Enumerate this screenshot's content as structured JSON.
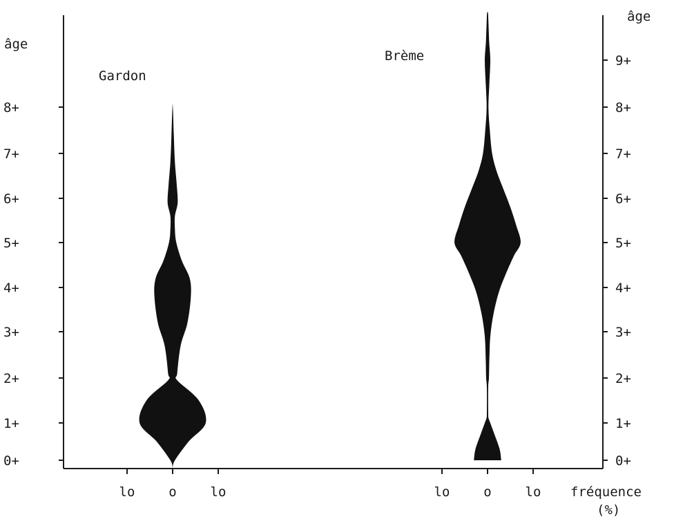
{
  "chart_data": {
    "type": "area",
    "left_axis_label": "âge",
    "right_axis_label": "âge",
    "x_unit_label": "fréquence",
    "x_unit_sub": "(%)",
    "left_age_ticks": [
      "0+",
      "1+",
      "2+",
      "3+",
      "4+",
      "5+",
      "6+",
      "7+",
      "8+"
    ],
    "right_age_ticks": [
      "0+",
      "1+",
      "2+",
      "3+",
      "4+",
      "5+",
      "6+",
      "7+",
      "8+",
      "9+"
    ],
    "x_ticks": [
      "lo",
      "o",
      "lo"
    ],
    "x_tick_values": [
      10,
      0,
      10
    ],
    "series": [
      {
        "name": "Gardon",
        "color": "#111111",
        "profile": [
          [
            -0.2,
            0
          ],
          [
            0.0,
            1.0
          ],
          [
            0.5,
            7.0
          ],
          [
            1.0,
            14.5
          ],
          [
            1.5,
            11.5
          ],
          [
            1.95,
            2.0
          ],
          [
            2.1,
            2.0
          ],
          [
            2.7,
            3.5
          ],
          [
            3.2,
            6.5
          ],
          [
            3.8,
            8.0
          ],
          [
            4.2,
            7.5
          ],
          [
            4.6,
            4.0
          ],
          [
            5.0,
            1.6
          ],
          [
            5.3,
            1.0
          ],
          [
            5.6,
            1.0
          ],
          [
            5.9,
            2.2
          ],
          [
            6.3,
            1.8
          ],
          [
            6.8,
            1.0
          ],
          [
            7.4,
            0.5
          ],
          [
            8.0,
            0.1
          ]
        ]
      },
      {
        "name": "Brème",
        "color": "#111111",
        "profile": [
          [
            0.0,
            6.0
          ],
          [
            0.3,
            5.3
          ],
          [
            0.7,
            3.0
          ],
          [
            1.0,
            1.2
          ],
          [
            1.1,
            0.5
          ],
          [
            1.2,
            0.3
          ],
          [
            1.8,
            0.3
          ],
          [
            2.0,
            0.6
          ],
          [
            2.4,
            0.8
          ],
          [
            2.9,
            1.2
          ],
          [
            3.4,
            2.6
          ],
          [
            3.9,
            5.0
          ],
          [
            4.3,
            8.0
          ],
          [
            4.7,
            11.5
          ],
          [
            5.0,
            14.5
          ],
          [
            5.4,
            12.5
          ],
          [
            5.8,
            10.0
          ],
          [
            6.2,
            7.0
          ],
          [
            6.6,
            4.0
          ],
          [
            7.0,
            2.0
          ],
          [
            7.5,
            1.0
          ],
          [
            8.0,
            0.4
          ],
          [
            8.5,
            0.8
          ],
          [
            9.0,
            1.2
          ],
          [
            9.4,
            0.7
          ],
          [
            9.8,
            0.4
          ],
          [
            10.0,
            0.2
          ]
        ]
      }
    ]
  }
}
